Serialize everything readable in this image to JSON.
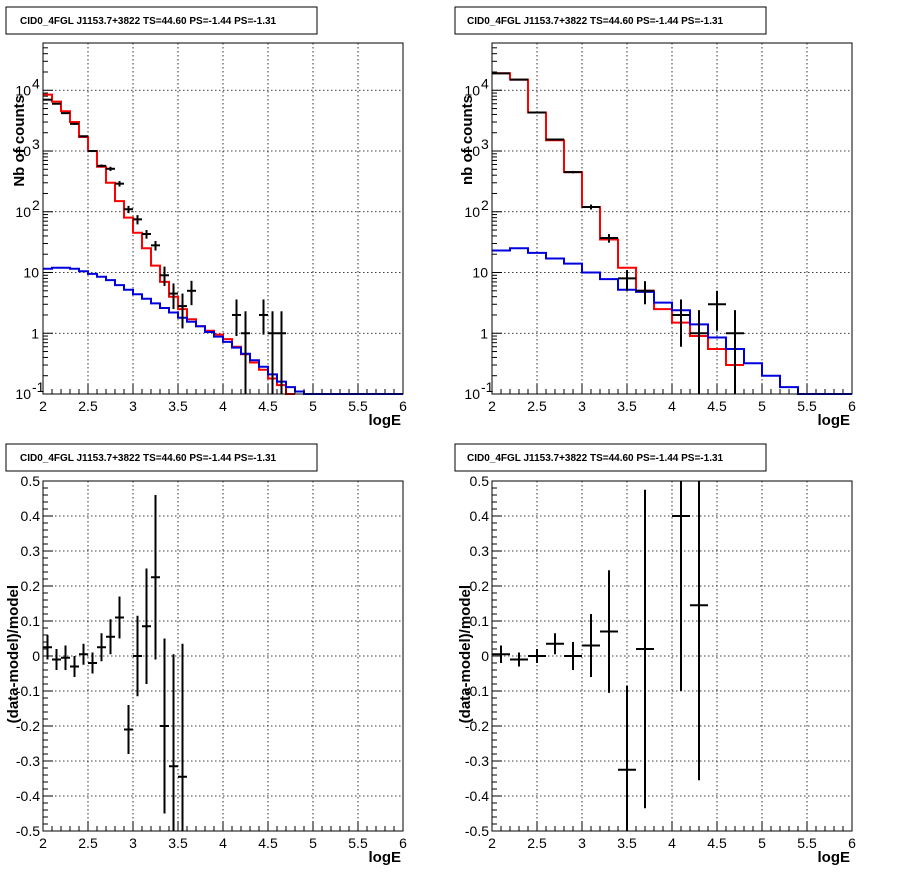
{
  "colors": {
    "data": "#000000",
    "total_model": "#ff0000",
    "background_model": "#0000dd",
    "grid": "#000000"
  },
  "chart_data": [
    {
      "id": "counts-left",
      "type": "line",
      "title": "CID0_4FGL J1153.7+3822 TS=44.60 PS=-1.44 PS=-1.31",
      "xlabel": "logE",
      "ylabel": "Nb of counts",
      "xlim": [
        2,
        6
      ],
      "ylim": [
        0.1,
        60000
      ],
      "log_y": true,
      "grid": true,
      "x_ticks": [
        "2",
        "2.5",
        "3",
        "3.5",
        "4",
        "4.5",
        "5",
        "5.5",
        "6"
      ],
      "y_ticks": [
        {
          "v": 0.1,
          "label": "10",
          "exp": "-1"
        },
        {
          "v": 1,
          "label": "1",
          "exp": ""
        },
        {
          "v": 10,
          "label": "10",
          "exp": ""
        },
        {
          "v": 100,
          "label": "10",
          "exp": "2"
        },
        {
          "v": 1000,
          "label": "10",
          "exp": "3"
        },
        {
          "v": 10000,
          "label": "10",
          "exp": "4"
        }
      ],
      "bin_width": 0.1,
      "series": [
        {
          "role": "total_model",
          "x": [
            2.0,
            2.1,
            2.2,
            2.3,
            2.4,
            2.5,
            2.6,
            2.7,
            2.8,
            2.9,
            3.0,
            3.1,
            3.2,
            3.3,
            3.4,
            3.5,
            3.6,
            3.7,
            3.8,
            3.9,
            4.0,
            4.1,
            4.2,
            4.3,
            4.4,
            4.5,
            4.6,
            4.7
          ],
          "values": [
            8500,
            6500,
            4500,
            3000,
            1700,
            1000,
            550,
            300,
            150,
            80,
            45,
            25,
            13,
            7,
            4,
            2.5,
            1.7,
            1.3,
            1.1,
            0.95,
            0.8,
            0.6,
            0.45,
            0.33,
            0.25,
            0.18,
            0.14,
            0.1
          ]
        },
        {
          "role": "background_model",
          "x": [
            2.0,
            2.1,
            2.2,
            2.3,
            2.4,
            2.5,
            2.6,
            2.7,
            2.8,
            2.9,
            3.0,
            3.1,
            3.2,
            3.3,
            3.4,
            3.5,
            3.6,
            3.7,
            3.8,
            3.9,
            4.0,
            4.1,
            4.2,
            4.3,
            4.4,
            4.5,
            4.6,
            4.7,
            4.8,
            4.9,
            5.0,
            5.1,
            5.2,
            5.3,
            5.4,
            5.5,
            5.6,
            5.7,
            5.8,
            5.9
          ],
          "values": [
            11.5,
            12,
            12,
            11.5,
            10.5,
            9.5,
            8.5,
            7.5,
            6.2,
            5.2,
            4.4,
            3.7,
            3.1,
            2.6,
            2.2,
            1.8,
            1.55,
            1.3,
            1.05,
            0.88,
            0.72,
            0.58,
            0.46,
            0.36,
            0.28,
            0.21,
            0.16,
            0.13,
            0.11,
            0.1,
            0.1,
            0.1,
            0.1,
            0.1,
            0.1,
            0.1,
            0.1,
            0.1,
            0.1,
            0.1
          ]
        },
        {
          "role": "data",
          "x": [
            2.05,
            2.15,
            2.25,
            2.35,
            2.45,
            2.55,
            2.65,
            2.75,
            2.85,
            2.95,
            3.05,
            3.15,
            3.25,
            3.35,
            3.45,
            3.55,
            3.65,
            4.15,
            4.25,
            4.45,
            4.55,
            4.65
          ],
          "values": [
            7000,
            6000,
            4200,
            2800,
            1750,
            1000,
            570,
            510,
            290,
            110,
            75,
            43,
            28,
            9,
            4.5,
            2.8,
            5,
            2,
            1,
            2,
            1,
            1
          ],
          "err_lo": [
            6900,
            5900,
            4100,
            2700,
            1700,
            960,
            540,
            470,
            260,
            95,
            62,
            36,
            23,
            6,
            2.5,
            1.2,
            2.9,
            0.9,
            0.09,
            0.95,
            0.09,
            0.09
          ],
          "err_hi": [
            7100,
            6100,
            4300,
            2900,
            1800,
            1040,
            600,
            550,
            320,
            125,
            88,
            50,
            33,
            12.5,
            6.6,
            4.5,
            7.3,
            3.6,
            2.3,
            3.6,
            2.3,
            2.3
          ]
        }
      ]
    },
    {
      "id": "counts-right",
      "type": "line",
      "title": "CID0_4FGL J1153.7+3822 TS=44.60 PS=-1.44 PS=-1.31",
      "xlabel": "logE",
      "ylabel": "nb of counts",
      "xlim": [
        2,
        6
      ],
      "ylim": [
        0.1,
        60000
      ],
      "log_y": true,
      "grid": true,
      "x_ticks": [
        "2",
        "2.5",
        "3",
        "3.5",
        "4",
        "4.5",
        "5",
        "5.5",
        "6"
      ],
      "y_ticks": [
        {
          "v": 0.1,
          "label": "10",
          "exp": "-1"
        },
        {
          "v": 1,
          "label": "1",
          "exp": ""
        },
        {
          "v": 10,
          "label": "10",
          "exp": ""
        },
        {
          "v": 100,
          "label": "10",
          "exp": "2"
        },
        {
          "v": 1000,
          "label": "10",
          "exp": "3"
        },
        {
          "v": 10000,
          "label": "10",
          "exp": "4"
        }
      ],
      "bin_width": 0.2,
      "series": [
        {
          "role": "total_model",
          "x": [
            2.0,
            2.2,
            2.4,
            2.6,
            2.8,
            3.0,
            3.2,
            3.4,
            3.6,
            3.8,
            4.0,
            4.2,
            4.4,
            4.6
          ],
          "values": [
            19000,
            15000,
            4300,
            1500,
            450,
            120,
            35,
            12,
            5,
            2.5,
            1.5,
            0.9,
            0.55,
            0.3
          ]
        },
        {
          "role": "background_model",
          "x": [
            2.0,
            2.2,
            2.4,
            2.6,
            2.8,
            3.0,
            3.2,
            3.4,
            3.6,
            3.8,
            4.0,
            4.2,
            4.4,
            4.6,
            4.8,
            5.0,
            5.2,
            5.4,
            5.6,
            5.8
          ],
          "values": [
            23,
            25,
            21,
            17,
            14,
            10,
            7.8,
            5.2,
            4.8,
            3.2,
            2.4,
            1.4,
            0.85,
            0.55,
            0.32,
            0.2,
            0.13,
            0.1,
            0.1,
            0.1
          ]
        },
        {
          "role": "data",
          "x": [
            2.1,
            2.3,
            2.5,
            2.7,
            2.9,
            3.1,
            3.3,
            3.5,
            3.7,
            4.1,
            4.3,
            4.5,
            4.7
          ],
          "values": [
            19000,
            15000,
            4300,
            1550,
            450,
            120,
            37,
            8,
            5,
            2,
            1,
            3,
            1
          ],
          "err_lo": [
            18860,
            14880,
            4230,
            1510,
            430,
            109,
            31,
            5,
            3,
            0.6,
            0.1,
            1.1,
            0.1
          ],
          "err_hi": [
            19140,
            15120,
            4370,
            1590,
            470,
            131,
            43,
            11,
            7.2,
            3.6,
            2.4,
            5,
            2.4
          ]
        }
      ]
    },
    {
      "id": "residuals-left",
      "type": "scatter",
      "title": "CID0_4FGL J1153.7+3822 TS=44.60 PS=-1.44 PS=-1.31",
      "xlabel": "logE",
      "ylabel": "(data-model)/model",
      "xlim": [
        2,
        6
      ],
      "ylim": [
        -0.5,
        0.5
      ],
      "log_y": false,
      "grid": true,
      "x_ticks": [
        "2",
        "2.5",
        "3",
        "3.5",
        "4",
        "4.5",
        "5",
        "5.5",
        "6"
      ],
      "y_ticks": [
        "-0.5",
        "-0.4",
        "-0.3",
        "-0.2",
        "-0.1",
        "0",
        "0.1",
        "0.2",
        "0.3",
        "0.4",
        "0.5"
      ],
      "bin_width": 0.1,
      "series": [
        {
          "role": "data",
          "x": [
            2.05,
            2.15,
            2.25,
            2.35,
            2.45,
            2.55,
            2.65,
            2.75,
            2.85,
            2.95,
            3.05,
            3.15,
            3.25,
            3.35,
            3.45,
            3.55
          ],
          "values": [
            0.025,
            -0.01,
            -0.005,
            -0.03,
            0.005,
            -0.02,
            0.025,
            0.055,
            0.11,
            -0.21,
            0,
            0.085,
            0.225,
            -0.2,
            -0.315,
            -0.345
          ],
          "err": [
            0.035,
            0.03,
            0.035,
            0.03,
            0.03,
            0.03,
            0.04,
            0.05,
            0.06,
            0.07,
            0.115,
            0.165,
            0.235,
            0.25,
            0.32,
            0.38
          ]
        }
      ]
    },
    {
      "id": "residuals-right",
      "type": "scatter",
      "title": "CID0_4FGL J1153.7+3822 TS=44.60 PS=-1.44 PS=-1.31",
      "xlabel": "logE",
      "ylabel": "(data-model)/model",
      "xlim": [
        2,
        6
      ],
      "ylim": [
        -0.5,
        0.5
      ],
      "log_y": false,
      "grid": true,
      "x_ticks": [
        "2",
        "2.5",
        "3",
        "3.5",
        "4",
        "4.5",
        "5",
        "5.5",
        "6"
      ],
      "y_ticks": [
        "-0.5",
        "-0.4",
        "-0.3",
        "-0.2",
        "-0.1",
        "0",
        "0.1",
        "0.2",
        "0.3",
        "0.4",
        "0.5"
      ],
      "bin_width": 0.2,
      "series": [
        {
          "role": "data",
          "x": [
            2.1,
            2.3,
            2.5,
            2.7,
            2.9,
            3.1,
            3.3,
            3.5,
            3.7,
            4.1,
            4.3
          ],
          "values": [
            0.005,
            -0.01,
            0,
            0.035,
            0,
            0.03,
            0.07,
            -0.325,
            0.02,
            0.4,
            0.145
          ],
          "err": [
            0.025,
            0.02,
            0.02,
            0.03,
            0.04,
            0.09,
            0.175,
            0.24,
            0.455,
            0.5,
            0.5
          ]
        }
      ]
    }
  ]
}
